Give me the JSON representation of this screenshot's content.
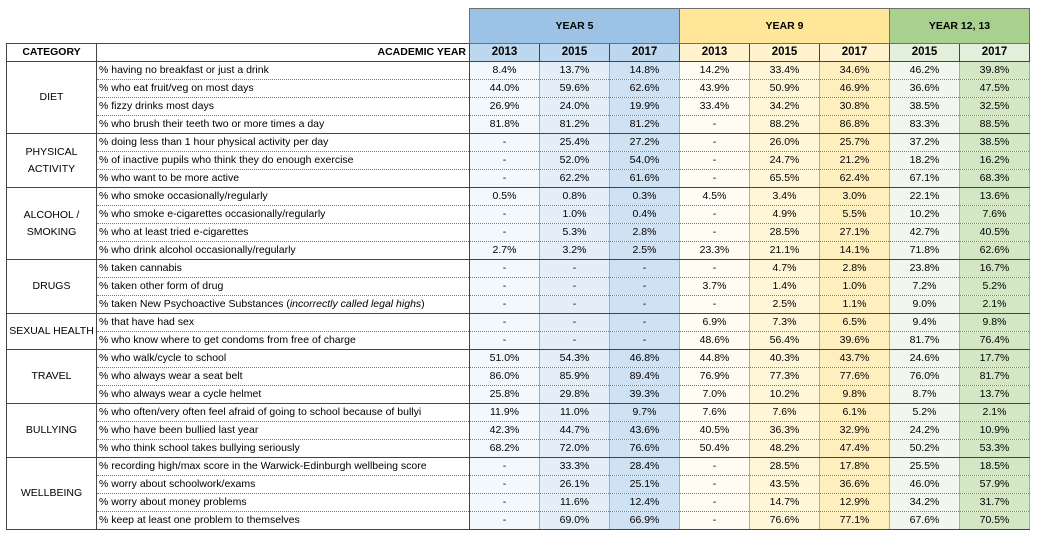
{
  "groups": {
    "year5": "YEAR 5",
    "year9": "YEAR 9",
    "year12": "YEAR 12, 13"
  },
  "header": {
    "category": "CATEGORY",
    "academic_year": "ACADEMIC YEAR",
    "years": [
      "2013",
      "2015",
      "2017",
      "2013",
      "2015",
      "2017",
      "2015",
      "2017"
    ]
  },
  "sections": [
    {
      "name": "DIET",
      "rows": [
        {
          "q": "% having no breakfast or just a drink",
          "v": [
            "8.4%",
            "13.7%",
            "14.8%",
            "14.2%",
            "33.4%",
            "34.6%",
            "46.2%",
            "39.8%"
          ]
        },
        {
          "q": "% who eat fruit/veg on most days",
          "v": [
            "44.0%",
            "59.6%",
            "62.6%",
            "43.9%",
            "50.9%",
            "46.9%",
            "36.6%",
            "47.5%"
          ]
        },
        {
          "q": "% fizzy drinks most days",
          "v": [
            "26.9%",
            "24.0%",
            "19.9%",
            "33.4%",
            "34.2%",
            "30.8%",
            "38.5%",
            "32.5%"
          ]
        },
        {
          "q": "% who brush their teeth two or more times a day",
          "v": [
            "81.8%",
            "81.2%",
            "81.2%",
            "-",
            "88.2%",
            "86.8%",
            "83.3%",
            "88.5%"
          ]
        }
      ]
    },
    {
      "name": "PHYSICAL ACTIVITY",
      "rows": [
        {
          "q": "% doing less than 1 hour physical activity per day",
          "v": [
            "-",
            "25.4%",
            "27.2%",
            "-",
            "26.0%",
            "25.7%",
            "37.2%",
            "38.5%"
          ]
        },
        {
          "q": "% of inactive pupils who think they do enough exercise",
          "v": [
            "-",
            "52.0%",
            "54.0%",
            "-",
            "24.7%",
            "21.2%",
            "18.2%",
            "16.2%"
          ]
        },
        {
          "q": "% who want to be more active",
          "v": [
            "-",
            "62.2%",
            "61.6%",
            "-",
            "65.5%",
            "62.4%",
            "67.1%",
            "68.3%"
          ]
        }
      ]
    },
    {
      "name": "ALCOHOL / SMOKING",
      "rows": [
        {
          "q": "% who smoke occasionally/regularly",
          "v": [
            "0.5%",
            "0.8%",
            "0.3%",
            "4.5%",
            "3.4%",
            "3.0%",
            "22.1%",
            "13.6%"
          ]
        },
        {
          "q": "% who smoke e-cigarettes occasionally/regularly",
          "v": [
            "-",
            "1.0%",
            "0.4%",
            "-",
            "4.9%",
            "5.5%",
            "10.2%",
            "7.6%"
          ]
        },
        {
          "q": "% who at least tried e-cigarettes",
          "v": [
            "-",
            "5.3%",
            "2.8%",
            "-",
            "28.5%",
            "27.1%",
            "42.7%",
            "40.5%"
          ]
        },
        {
          "q": "% who drink alcohol occasionally/regularly",
          "v": [
            "2.7%",
            "3.2%",
            "2.5%",
            "23.3%",
            "21.1%",
            "14.1%",
            "71.8%",
            "62.6%"
          ]
        }
      ]
    },
    {
      "name": "DRUGS",
      "rows": [
        {
          "q": "% taken cannabis",
          "v": [
            "-",
            "-",
            "-",
            "-",
            "4.7%",
            "2.8%",
            "23.8%",
            "16.7%"
          ]
        },
        {
          "q": "% taken other form of drug",
          "v": [
            "-",
            "-",
            "-",
            "3.7%",
            "1.4%",
            "1.0%",
            "7.2%",
            "5.2%"
          ]
        },
        {
          "q": "% taken New Psychoactive Substances (",
          "qi": "incorrectly called legal highs",
          "qe": ")",
          "v": [
            "-",
            "-",
            "-",
            "-",
            "2.5%",
            "1.1%",
            "9.0%",
            "2.1%"
          ]
        }
      ]
    },
    {
      "name": "SEXUAL HEALTH",
      "rows": [
        {
          "q": "% that have had sex",
          "v": [
            "-",
            "-",
            "-",
            "6.9%",
            "7.3%",
            "6.5%",
            "9.4%",
            "9.8%"
          ]
        },
        {
          "q": "% who know where to get condoms from free of charge",
          "v": [
            "-",
            "-",
            "-",
            "48.6%",
            "56.4%",
            "39.6%",
            "81.7%",
            "76.4%"
          ]
        }
      ]
    },
    {
      "name": "TRAVEL",
      "rows": [
        {
          "q": "% who walk/cycle to school",
          "v": [
            "51.0%",
            "54.3%",
            "46.8%",
            "44.8%",
            "40.3%",
            "43.7%",
            "24.6%",
            "17.7%"
          ]
        },
        {
          "q": "% who always wear a seat belt",
          "v": [
            "86.0%",
            "85.9%",
            "89.4%",
            "76.9%",
            "77.3%",
            "77.6%",
            "76.0%",
            "81.7%"
          ]
        },
        {
          "q": "% who always wear a cycle helmet",
          "v": [
            "25.8%",
            "29.8%",
            "39.3%",
            "7.0%",
            "10.2%",
            "9.8%",
            "8.7%",
            "13.7%"
          ]
        }
      ]
    },
    {
      "name": "BULLYING",
      "rows": [
        {
          "q": "% who often/very often feel afraid of going to school because of bullyi",
          "v": [
            "11.9%",
            "11.0%",
            "9.7%",
            "7.6%",
            "7.6%",
            "6.1%",
            "5.2%",
            "2.1%"
          ]
        },
        {
          "q": "% who have been bullied last year",
          "v": [
            "42.3%",
            "44.7%",
            "43.6%",
            "40.5%",
            "36.3%",
            "32.9%",
            "24.2%",
            "10.9%"
          ]
        },
        {
          "q": "% who think school takes bullying seriously",
          "v": [
            "68.2%",
            "72.0%",
            "76.6%",
            "50.4%",
            "48.2%",
            "47.4%",
            "50.2%",
            "53.3%"
          ]
        }
      ]
    },
    {
      "name": "WELLBEING",
      "rows": [
        {
          "q": "% recording high/max score in the Warwick-Edinburgh wellbeing score",
          "v": [
            "-",
            "33.3%",
            "28.4%",
            "-",
            "28.5%",
            "17.8%",
            "25.5%",
            "18.5%"
          ]
        },
        {
          "q": "% worry about schoolwork/exams",
          "v": [
            "-",
            "26.1%",
            "25.1%",
            "-",
            "43.5%",
            "36.6%",
            "46.0%",
            "57.9%"
          ]
        },
        {
          "q": "% worry about money problems",
          "v": [
            "-",
            "11.6%",
            "12.4%",
            "-",
            "14.7%",
            "12.9%",
            "34.2%",
            "31.7%"
          ]
        },
        {
          "q": "% keep at least one problem to themselves",
          "v": [
            "-",
            "69.0%",
            "66.9%",
            "-",
            "76.6%",
            "77.1%",
            "67.6%",
            "70.5%"
          ]
        }
      ]
    }
  ]
}
